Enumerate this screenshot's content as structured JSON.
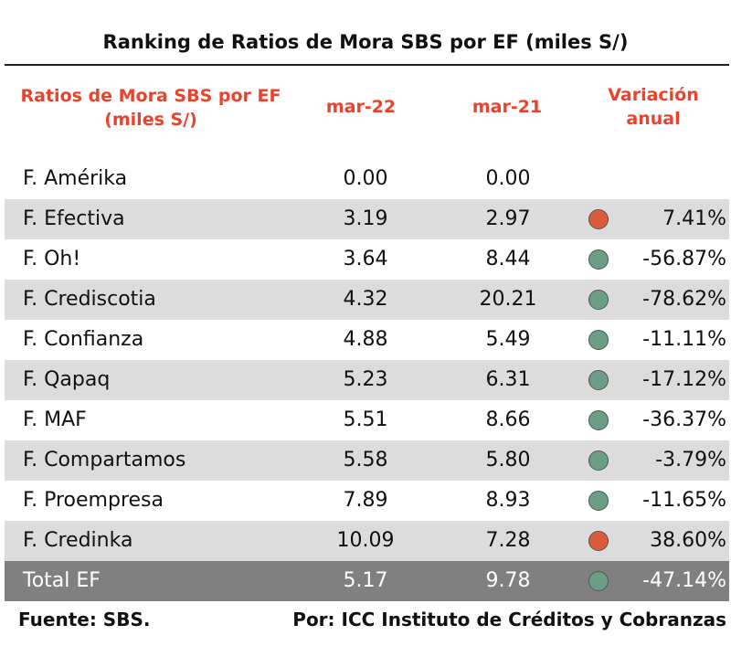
{
  "chart_data": {
    "type": "table",
    "title": "Ranking de Ratios de Mora SBS por EF (miles S/)",
    "columns": [
      "Ratios de Mora SBS por EF (miles S/)",
      "mar-22",
      "mar-21",
      "Variación anual"
    ],
    "rows": [
      {
        "name": "F. Amérika",
        "mar22": "0.00",
        "mar21": "0.00",
        "indicator": "none",
        "variation": ""
      },
      {
        "name": "F. Efectiva",
        "mar22": "3.19",
        "mar21": "2.97",
        "indicator": "red",
        "variation": "7.41%"
      },
      {
        "name": "F. Oh!",
        "mar22": "3.64",
        "mar21": "8.44",
        "indicator": "green",
        "variation": "-56.87%"
      },
      {
        "name": "F. Crediscotia",
        "mar22": "4.32",
        "mar21": "20.21",
        "indicator": "green",
        "variation": "-78.62%"
      },
      {
        "name": "F. Confianza",
        "mar22": "4.88",
        "mar21": "5.49",
        "indicator": "green",
        "variation": "-11.11%"
      },
      {
        "name": "F. Qapaq",
        "mar22": "5.23",
        "mar21": "6.31",
        "indicator": "green",
        "variation": "-17.12%"
      },
      {
        "name": "F. MAF",
        "mar22": "5.51",
        "mar21": "8.66",
        "indicator": "green",
        "variation": "-36.37%"
      },
      {
        "name": "F. Compartamos",
        "mar22": "5.58",
        "mar21": "5.80",
        "indicator": "green",
        "variation": "-3.79%"
      },
      {
        "name": "F. Proempresa",
        "mar22": "7.89",
        "mar21": "8.93",
        "indicator": "green",
        "variation": "-11.65%"
      },
      {
        "name": "F. Credinka",
        "mar22": "10.09",
        "mar21": "7.28",
        "indicator": "red",
        "variation": "38.60%"
      }
    ],
    "total": {
      "name": "Total EF",
      "mar22": "5.17",
      "mar21": "9.78",
      "indicator": "green",
      "variation": "-47.14%"
    }
  },
  "header": {
    "name_line1": "Ratios de Mora SBS por EF",
    "name_line2": "(miles S/)",
    "col1": "mar-22",
    "col2": "mar-21",
    "col3_line1": "Variación",
    "col3_line2": "anual"
  },
  "footer": {
    "source": "Fuente: SBS.",
    "author": "Por: ICC Instituto de Créditos y Cobranzas"
  },
  "colors": {
    "header_text": "#e8432d",
    "indicator_red": "#d95b3b",
    "indicator_green": "#6b9e87",
    "row_shade": "#dcdcdc",
    "total_bg": "#808080"
  }
}
